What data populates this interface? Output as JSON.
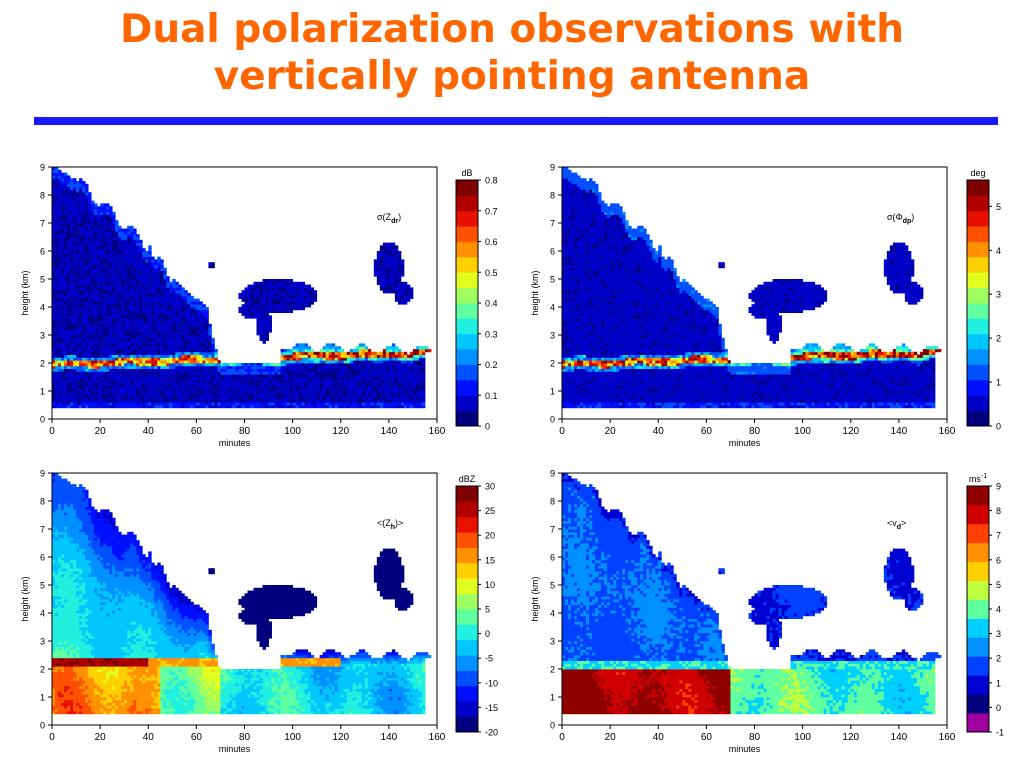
{
  "slide": {
    "title_line1": "Dual polarization observations with",
    "title_line2": "vertically pointing antenna"
  },
  "colors": {
    "title": "#ff6600",
    "rule": "#1a1aff"
  },
  "chart_data": [
    {
      "type": "heatmap",
      "annotation": "σ(Z",
      "annotation_sub": "dr",
      "annotation_end": ")",
      "xlabel": "minutes",
      "ylabel": "height (km)",
      "xlim": [
        0,
        160
      ],
      "ylim": [
        0,
        9
      ],
      "xticks": [
        0,
        20,
        40,
        60,
        80,
        100,
        120,
        140,
        160
      ],
      "yticks": [
        0,
        1,
        2,
        3,
        4,
        5,
        6,
        7,
        8,
        9
      ],
      "colorbar": {
        "unit": "dB",
        "unit_sup": "",
        "min": 0,
        "max": 0.8,
        "ticks": [
          0,
          0.1,
          0.2,
          0.3,
          0.4,
          0.5,
          0.6,
          0.7,
          0.8
        ],
        "tick_labels": [
          "0",
          "0.1",
          "0.2",
          "0.3",
          "0.4",
          "0.5",
          "0.6",
          "0.7",
          "0.8"
        ]
      },
      "fields": {
        "background": 0.06,
        "band_center_value": 0.55,
        "low_layer": 0.08,
        "tail_cloud": 0.12
      }
    },
    {
      "type": "heatmap",
      "annotation": "σ(Φ",
      "annotation_sub": "dp",
      "annotation_end": ")",
      "xlabel": "minutes",
      "ylabel": "height (km)",
      "xlim": [
        0,
        160
      ],
      "ylim": [
        0,
        9
      ],
      "xticks": [
        0,
        20,
        40,
        60,
        80,
        100,
        120,
        140,
        160
      ],
      "yticks": [
        0,
        1,
        2,
        3,
        4,
        5,
        6,
        7,
        8,
        9
      ],
      "colorbar": {
        "unit": "deg",
        "unit_sup": "",
        "min": 0,
        "max": 5.6,
        "ticks": [
          0,
          1,
          2,
          3,
          4,
          5
        ],
        "tick_labels": [
          "0",
          "1",
          "2",
          "3",
          "4",
          "5"
        ]
      },
      "fields": {
        "background": 0.5,
        "band_center_value": 4.0,
        "low_layer": 0.6,
        "tail_cloud": 0.9
      }
    },
    {
      "type": "heatmap",
      "annotation": "<(Z",
      "annotation_sub": "h",
      "annotation_end": ")>",
      "xlabel": "minutes",
      "ylabel": "height (km)",
      "xlim": [
        0,
        160
      ],
      "ylim": [
        0,
        9
      ],
      "xticks": [
        0,
        20,
        40,
        60,
        80,
        100,
        120,
        140,
        160
      ],
      "yticks": [
        0,
        1,
        2,
        3,
        4,
        5,
        6,
        7,
        8,
        9
      ],
      "colorbar": {
        "unit": "dBZ",
        "unit_sup": "",
        "min": -20,
        "max": 30,
        "ticks": [
          -20,
          -15,
          -10,
          -5,
          0,
          5,
          10,
          15,
          20,
          25,
          30
        ],
        "tick_labels": [
          "-20",
          "-15",
          "-10",
          "-5",
          "0",
          "5",
          "10",
          "15",
          "20",
          "25",
          "30"
        ]
      },
      "fields": {
        "top_value": -12,
        "low_value_early": 14,
        "low_value_late": -3,
        "band_value": 25
      }
    },
    {
      "type": "heatmap",
      "annotation": "<v",
      "annotation_sub": "d",
      "annotation_end": ">",
      "xlabel": "minutes",
      "ylabel": "height (km)",
      "xlim": [
        0,
        160
      ],
      "ylim": [
        0,
        9
      ],
      "xticks": [
        0,
        20,
        40,
        60,
        80,
        100,
        120,
        140,
        160
      ],
      "yticks": [
        0,
        1,
        2,
        3,
        4,
        5,
        6,
        7,
        8,
        9
      ],
      "colorbar": {
        "unit": "ms",
        "unit_sup": "-1",
        "min": -1,
        "max": 9,
        "ticks": [
          -1,
          0,
          1,
          2,
          3,
          4,
          5,
          6,
          7,
          8,
          9
        ],
        "tick_labels": [
          "-1",
          "0",
          "1",
          "2",
          "3",
          "4",
          "5",
          "6",
          "7",
          "8",
          "9"
        ]
      },
      "fields": {
        "snow_value": 1.8,
        "rain_value_early": 8.0,
        "rain_value_late": 3.5
      }
    }
  ]
}
